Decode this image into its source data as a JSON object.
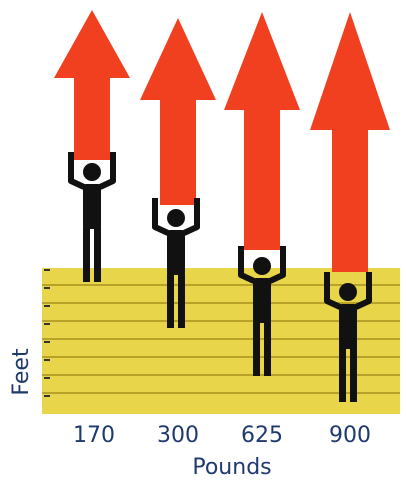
{
  "y_axis_label": "Feet",
  "x_axis_label": "Pounds",
  "columns": [
    {
      "label": "170"
    },
    {
      "label": "300"
    },
    {
      "label": "625"
    },
    {
      "label": "900"
    }
  ]
}
